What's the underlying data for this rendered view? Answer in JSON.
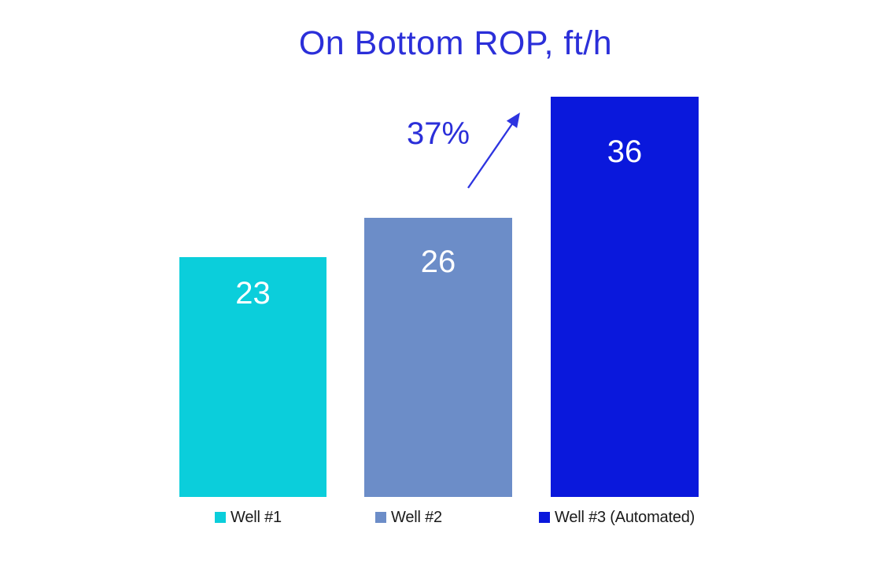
{
  "chart_data": {
    "type": "bar",
    "title": "On Bottom ROP, ft/h",
    "categories": [
      "Well #1",
      "Well #2",
      "Well #3 (Automated)"
    ],
    "values": [
      23,
      26,
      36
    ],
    "bar_colors": [
      "#0BCEDB",
      "#6C8DC8",
      "#0A18DC"
    ],
    "data_label_color": "#FFFFFF",
    "title_color": "#2B2FD9",
    "annotation": {
      "label": "37%"
    },
    "legend_position": "bottom",
    "grid": false,
    "axes_visible": false
  },
  "legend": {
    "items": [
      {
        "label": "Well #1",
        "color": "#0BCEDB"
      },
      {
        "label": "Well #2",
        "color": "#6C8DC8"
      },
      {
        "label": "Well #3 (Automated)",
        "color": "#0A18DC"
      }
    ]
  }
}
